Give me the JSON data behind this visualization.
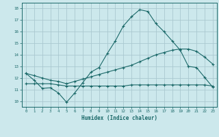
{
  "xlabel": "Humidex (Indice chaleur)",
  "bg_color": "#cce8ec",
  "grid_color": "#aac8d0",
  "line_color": "#1a6868",
  "x_ticks": [
    0,
    1,
    2,
    3,
    4,
    5,
    6,
    7,
    8,
    9,
    10,
    11,
    12,
    13,
    14,
    15,
    16,
    17,
    18,
    19,
    20,
    21,
    22,
    23
  ],
  "y_ticks": [
    10,
    11,
    12,
    13,
    14,
    15,
    16,
    17,
    18
  ],
  "xlim": [
    -0.5,
    23.5
  ],
  "ylim": [
    9.5,
    18.5
  ],
  "line1_x": [
    0,
    1,
    2,
    3,
    4,
    5,
    6,
    7,
    8,
    9,
    10,
    11,
    12,
    13,
    14,
    15,
    16,
    17,
    18,
    19,
    20,
    21,
    22,
    23
  ],
  "line1_y": [
    12.4,
    11.8,
    11.1,
    11.15,
    10.7,
    9.9,
    10.7,
    11.6,
    12.5,
    12.9,
    14.1,
    15.2,
    16.5,
    17.3,
    17.9,
    17.75,
    16.7,
    16.0,
    15.2,
    14.4,
    13.0,
    12.9,
    12.05,
    11.2
  ],
  "line2_x": [
    0,
    1,
    2,
    3,
    4,
    5,
    6,
    7,
    8,
    9,
    10,
    11,
    12,
    13,
    14,
    15,
    16,
    17,
    18,
    19,
    20,
    21,
    22,
    23
  ],
  "line2_y": [
    11.5,
    11.5,
    11.5,
    11.5,
    11.4,
    11.3,
    11.3,
    11.3,
    11.3,
    11.3,
    11.3,
    11.3,
    11.3,
    11.4,
    11.4,
    11.4,
    11.4,
    11.4,
    11.4,
    11.4,
    11.4,
    11.4,
    11.4,
    11.3
  ],
  "line3_x": [
    0,
    1,
    2,
    3,
    4,
    5,
    6,
    7,
    8,
    9,
    10,
    11,
    12,
    13,
    14,
    15,
    16,
    17,
    18,
    19,
    20,
    21,
    22,
    23
  ],
  "line3_y": [
    12.4,
    12.2,
    12.0,
    11.8,
    11.7,
    11.5,
    11.7,
    11.9,
    12.1,
    12.3,
    12.5,
    12.7,
    12.9,
    13.1,
    13.4,
    13.7,
    14.0,
    14.2,
    14.4,
    14.5,
    14.5,
    14.3,
    13.8,
    13.2
  ]
}
